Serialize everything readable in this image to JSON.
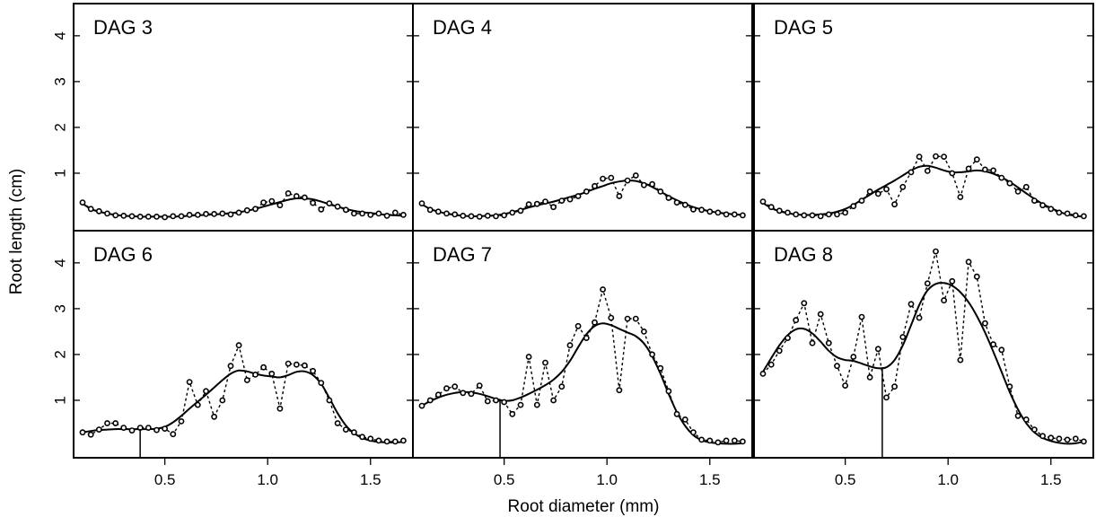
{
  "figure": {
    "xlabel": "Root diameter (mm)",
    "ylabel": "Root length (cm)"
  },
  "chart_data": [
    {
      "type": "line",
      "title": "DAG  3",
      "xlim": [
        0.1,
        1.68
      ],
      "ylim": [
        0,
        4.35
      ],
      "x_ticks": [
        0.5,
        1.0,
        1.5
      ],
      "y_ticks": [
        1,
        2,
        3,
        4
      ],
      "x": [
        0.1,
        0.14,
        0.18,
        0.22,
        0.26,
        0.3,
        0.34,
        0.38,
        0.42,
        0.46,
        0.5,
        0.54,
        0.58,
        0.62,
        0.66,
        0.7,
        0.74,
        0.78,
        0.82,
        0.86,
        0.9,
        0.94,
        0.98,
        1.02,
        1.06,
        1.1,
        1.14,
        1.18,
        1.22,
        1.26,
        1.3,
        1.34,
        1.38,
        1.42,
        1.46,
        1.5,
        1.54,
        1.58,
        1.62,
        1.66
      ],
      "observed": [
        0.36,
        0.22,
        0.17,
        0.12,
        0.08,
        0.07,
        0.06,
        0.05,
        0.05,
        0.05,
        0.04,
        0.06,
        0.06,
        0.09,
        0.09,
        0.11,
        0.11,
        0.12,
        0.1,
        0.14,
        0.19,
        0.22,
        0.36,
        0.39,
        0.3,
        0.56,
        0.5,
        0.47,
        0.35,
        0.21,
        0.34,
        0.27,
        0.2,
        0.12,
        0.12,
        0.09,
        0.12,
        0.07,
        0.14,
        0.09
      ],
      "smooth": [
        0.34,
        0.22,
        0.16,
        0.12,
        0.09,
        0.07,
        0.06,
        0.05,
        0.05,
        0.05,
        0.05,
        0.05,
        0.06,
        0.07,
        0.08,
        0.09,
        0.1,
        0.11,
        0.13,
        0.15,
        0.18,
        0.22,
        0.27,
        0.32,
        0.37,
        0.42,
        0.45,
        0.45,
        0.43,
        0.38,
        0.32,
        0.27,
        0.22,
        0.18,
        0.15,
        0.13,
        0.11,
        0.09,
        0.08,
        0.07
      ],
      "marker_x": null
    },
    {
      "type": "line",
      "title": "DAG  4",
      "xlim": [
        0.1,
        1.68
      ],
      "ylim": [
        0,
        4.35
      ],
      "x_ticks": [
        0.5,
        1.0,
        1.5
      ],
      "y_ticks": [
        1,
        2,
        3,
        4
      ],
      "x": [
        0.1,
        0.14,
        0.18,
        0.22,
        0.26,
        0.3,
        0.34,
        0.38,
        0.42,
        0.46,
        0.5,
        0.54,
        0.58,
        0.62,
        0.66,
        0.7,
        0.74,
        0.78,
        0.82,
        0.86,
        0.9,
        0.94,
        0.98,
        1.02,
        1.06,
        1.1,
        1.14,
        1.18,
        1.22,
        1.26,
        1.3,
        1.34,
        1.38,
        1.42,
        1.46,
        1.5,
        1.54,
        1.58,
        1.62,
        1.66
      ],
      "observed": [
        0.34,
        0.2,
        0.16,
        0.12,
        0.1,
        0.07,
        0.06,
        0.05,
        0.07,
        0.06,
        0.08,
        0.14,
        0.18,
        0.32,
        0.33,
        0.38,
        0.26,
        0.4,
        0.43,
        0.5,
        0.6,
        0.72,
        0.88,
        0.9,
        0.5,
        0.84,
        0.95,
        0.74,
        0.76,
        0.6,
        0.46,
        0.36,
        0.31,
        0.21,
        0.2,
        0.16,
        0.14,
        0.1,
        0.1,
        0.08
      ],
      "smooth": [
        0.32,
        0.22,
        0.16,
        0.12,
        0.09,
        0.07,
        0.06,
        0.06,
        0.07,
        0.08,
        0.11,
        0.15,
        0.2,
        0.25,
        0.3,
        0.34,
        0.38,
        0.43,
        0.48,
        0.53,
        0.59,
        0.66,
        0.72,
        0.78,
        0.82,
        0.84,
        0.83,
        0.78,
        0.7,
        0.6,
        0.5,
        0.41,
        0.33,
        0.26,
        0.21,
        0.17,
        0.14,
        0.12,
        0.1,
        0.09
      ],
      "marker_x": null
    },
    {
      "type": "line",
      "title": "DAG  5",
      "xlim": [
        0.1,
        1.68
      ],
      "ylim": [
        0,
        4.35
      ],
      "x_ticks": [
        0.5,
        1.0,
        1.5
      ],
      "y_ticks": [
        1,
        2,
        3,
        4
      ],
      "x": [
        0.1,
        0.14,
        0.18,
        0.22,
        0.26,
        0.3,
        0.34,
        0.38,
        0.42,
        0.46,
        0.5,
        0.54,
        0.58,
        0.62,
        0.66,
        0.7,
        0.74,
        0.78,
        0.82,
        0.86,
        0.9,
        0.94,
        0.98,
        1.02,
        1.06,
        1.1,
        1.14,
        1.18,
        1.22,
        1.26,
        1.3,
        1.34,
        1.38,
        1.42,
        1.46,
        1.5,
        1.54,
        1.58,
        1.62,
        1.66
      ],
      "observed": [
        0.38,
        0.26,
        0.18,
        0.14,
        0.1,
        0.08,
        0.08,
        0.06,
        0.1,
        0.1,
        0.14,
        0.28,
        0.4,
        0.6,
        0.55,
        0.65,
        0.32,
        0.7,
        1.02,
        1.36,
        1.05,
        1.37,
        1.36,
        1.0,
        0.48,
        1.1,
        1.3,
        1.08,
        1.06,
        0.9,
        0.78,
        0.6,
        0.7,
        0.4,
        0.3,
        0.22,
        0.14,
        0.12,
        0.08,
        0.06
      ],
      "smooth": [
        0.35,
        0.24,
        0.17,
        0.13,
        0.1,
        0.09,
        0.09,
        0.1,
        0.12,
        0.16,
        0.22,
        0.31,
        0.42,
        0.53,
        0.64,
        0.74,
        0.84,
        0.95,
        1.06,
        1.14,
        1.16,
        1.12,
        1.06,
        1.02,
        1.02,
        1.04,
        1.06,
        1.04,
        0.99,
        0.91,
        0.81,
        0.69,
        0.56,
        0.44,
        0.33,
        0.24,
        0.16,
        0.1,
        0.07,
        0.05
      ],
      "marker_x": null
    },
    {
      "type": "line",
      "title": "DAG  6",
      "xlim": [
        0.1,
        1.68
      ],
      "ylim": [
        0,
        4.35
      ],
      "x_ticks": [
        0.5,
        1.0,
        1.5
      ],
      "y_ticks": [
        1,
        2,
        3,
        4
      ],
      "x": [
        0.1,
        0.14,
        0.18,
        0.22,
        0.26,
        0.3,
        0.34,
        0.38,
        0.42,
        0.46,
        0.5,
        0.54,
        0.58,
        0.62,
        0.66,
        0.7,
        0.74,
        0.78,
        0.82,
        0.86,
        0.9,
        0.94,
        0.98,
        1.02,
        1.06,
        1.1,
        1.14,
        1.18,
        1.22,
        1.26,
        1.3,
        1.34,
        1.38,
        1.42,
        1.46,
        1.5,
        1.54,
        1.58,
        1.62,
        1.66
      ],
      "observed": [
        0.3,
        0.25,
        0.36,
        0.5,
        0.5,
        0.4,
        0.34,
        0.4,
        0.4,
        0.35,
        0.38,
        0.26,
        0.54,
        1.4,
        0.9,
        1.2,
        0.64,
        1.0,
        1.75,
        2.2,
        1.44,
        1.56,
        1.72,
        1.58,
        0.82,
        1.8,
        1.78,
        1.76,
        1.64,
        1.38,
        1.0,
        0.5,
        0.36,
        0.3,
        0.2,
        0.16,
        0.12,
        0.1,
        0.1,
        0.12
      ],
      "smooth": [
        0.3,
        0.33,
        0.35,
        0.36,
        0.37,
        0.37,
        0.37,
        0.37,
        0.37,
        0.38,
        0.42,
        0.52,
        0.66,
        0.82,
        0.97,
        1.12,
        1.28,
        1.44,
        1.58,
        1.65,
        1.63,
        1.58,
        1.54,
        1.52,
        1.5,
        1.55,
        1.62,
        1.63,
        1.55,
        1.36,
        1.05,
        0.72,
        0.45,
        0.28,
        0.18,
        0.12,
        0.09,
        0.08,
        0.08,
        0.09
      ],
      "marker_x": 0.38
    },
    {
      "type": "line",
      "title": "DAG  7",
      "xlim": [
        0.1,
        1.68
      ],
      "ylim": [
        0,
        4.35
      ],
      "x_ticks": [
        0.5,
        1.0,
        1.5
      ],
      "y_ticks": [
        1,
        2,
        3,
        4
      ],
      "x": [
        0.1,
        0.14,
        0.18,
        0.22,
        0.26,
        0.3,
        0.34,
        0.38,
        0.42,
        0.46,
        0.5,
        0.54,
        0.58,
        0.62,
        0.66,
        0.7,
        0.74,
        0.78,
        0.82,
        0.86,
        0.9,
        0.94,
        0.98,
        1.02,
        1.06,
        1.1,
        1.14,
        1.18,
        1.22,
        1.26,
        1.3,
        1.34,
        1.38,
        1.42,
        1.46,
        1.5,
        1.54,
        1.58,
        1.62,
        1.66
      ],
      "observed": [
        0.88,
        1.0,
        1.12,
        1.26,
        1.3,
        1.16,
        1.14,
        1.32,
        0.98,
        1.0,
        0.96,
        0.7,
        0.9,
        1.95,
        0.9,
        1.82,
        1.0,
        1.3,
        2.2,
        2.62,
        2.36,
        2.7,
        3.42,
        2.8,
        1.22,
        2.78,
        2.78,
        2.5,
        2.0,
        1.7,
        1.2,
        0.7,
        0.58,
        0.3,
        0.14,
        0.12,
        0.08,
        0.12,
        0.12,
        0.1
      ],
      "smooth": [
        0.88,
        0.98,
        1.06,
        1.12,
        1.16,
        1.18,
        1.17,
        1.14,
        1.09,
        1.03,
        0.99,
        1.0,
        1.06,
        1.14,
        1.23,
        1.33,
        1.45,
        1.62,
        1.86,
        2.16,
        2.44,
        2.62,
        2.68,
        2.64,
        2.56,
        2.48,
        2.4,
        2.24,
        1.96,
        1.58,
        1.14,
        0.74,
        0.44,
        0.24,
        0.13,
        0.08,
        0.06,
        0.05,
        0.05,
        0.06
      ],
      "marker_x": 0.48
    },
    {
      "type": "line",
      "title": "DAG  8",
      "xlim": [
        0.1,
        1.68
      ],
      "ylim": [
        0,
        4.35
      ],
      "x_ticks": [
        0.5,
        1.0,
        1.5
      ],
      "y_ticks": [
        1,
        2,
        3,
        4
      ],
      "x": [
        0.1,
        0.14,
        0.18,
        0.22,
        0.26,
        0.3,
        0.34,
        0.38,
        0.42,
        0.46,
        0.5,
        0.54,
        0.58,
        0.62,
        0.66,
        0.7,
        0.74,
        0.78,
        0.82,
        0.86,
        0.9,
        0.94,
        0.98,
        1.02,
        1.06,
        1.1,
        1.14,
        1.18,
        1.22,
        1.26,
        1.3,
        1.34,
        1.38,
        1.42,
        1.46,
        1.5,
        1.54,
        1.58,
        1.62,
        1.66
      ],
      "observed": [
        1.58,
        1.78,
        2.08,
        2.36,
        2.75,
        3.12,
        2.25,
        2.88,
        2.25,
        1.75,
        1.32,
        1.95,
        2.82,
        1.5,
        2.12,
        1.06,
        1.3,
        2.38,
        3.1,
        2.8,
        3.55,
        4.25,
        3.18,
        3.6,
        1.88,
        4.02,
        3.7,
        2.68,
        2.22,
        2.1,
        1.3,
        0.66,
        0.58,
        0.36,
        0.22,
        0.18,
        0.16,
        0.14,
        0.16,
        0.1
      ],
      "smooth": [
        1.62,
        1.92,
        2.2,
        2.42,
        2.55,
        2.56,
        2.46,
        2.28,
        2.08,
        1.94,
        1.88,
        1.86,
        1.8,
        1.74,
        1.7,
        1.72,
        1.88,
        2.2,
        2.64,
        3.08,
        3.4,
        3.54,
        3.56,
        3.5,
        3.36,
        3.14,
        2.84,
        2.48,
        2.06,
        1.62,
        1.18,
        0.8,
        0.5,
        0.3,
        0.18,
        0.11,
        0.07,
        0.05,
        0.06,
        0.1
      ],
      "marker_x": 0.68
    }
  ]
}
